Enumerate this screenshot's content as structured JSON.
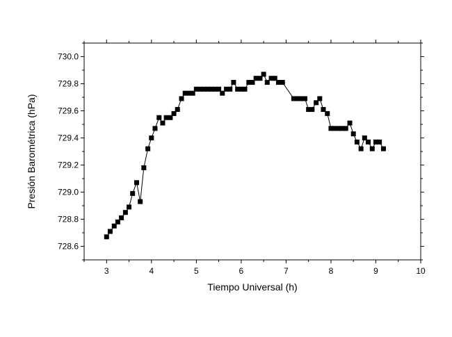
{
  "chart_data": {
    "type": "scatter",
    "title": "",
    "xlabel": "Tiempo Universal (h)",
    "ylabel": "Presión Barométrica (hPa)",
    "xlim": [
      2.5,
      10
    ],
    "ylim": [
      728.5,
      730.1
    ],
    "x_ticks": [
      3,
      4,
      5,
      6,
      7,
      8,
      9,
      10
    ],
    "x_tick_labels": [
      "3",
      "4",
      "5",
      "6",
      "7",
      "8",
      "9",
      "10"
    ],
    "y_ticks": [
      728.6,
      728.8,
      729.0,
      729.2,
      729.4,
      729.6,
      729.8,
      730.0
    ],
    "y_tick_labels": [
      "728.6",
      "728.8",
      "729.0",
      "729.2",
      "729.4",
      "729.6",
      "729.8",
      "730.0"
    ],
    "grid": false,
    "marker": "square",
    "line": true,
    "colors": {
      "series": "#000000"
    },
    "series": [
      {
        "x": [
          3.0,
          3.08,
          3.17,
          3.25,
          3.33,
          3.42,
          3.5,
          3.58,
          3.67,
          3.75,
          3.83,
          3.92,
          4.0,
          4.08,
          4.17,
          4.25,
          4.33,
          4.42,
          4.5,
          4.58,
          4.67,
          4.75,
          4.83,
          4.92,
          5.0,
          5.08,
          5.17,
          5.25,
          5.33,
          5.42,
          5.5,
          5.58,
          5.67,
          5.75,
          5.83,
          5.92,
          6.0,
          6.08,
          6.17,
          6.25,
          6.33,
          6.42,
          6.5,
          6.58,
          6.67,
          6.75,
          6.83,
          6.92,
          7.17,
          7.25,
          7.33,
          7.42,
          7.5,
          7.58,
          7.67,
          7.75,
          7.83,
          7.92,
          8.0,
          8.08,
          8.17,
          8.25,
          8.33,
          8.42,
          8.5,
          8.58,
          8.67,
          8.75,
          8.83,
          8.92,
          9.0,
          9.08,
          9.17
        ],
        "y": [
          728.67,
          728.71,
          728.75,
          728.78,
          728.81,
          728.85,
          728.89,
          728.99,
          729.07,
          728.93,
          729.18,
          729.32,
          729.4,
          729.47,
          729.55,
          729.51,
          729.55,
          729.55,
          729.58,
          729.61,
          729.69,
          729.73,
          729.73,
          729.73,
          729.76,
          729.76,
          729.76,
          729.76,
          729.76,
          729.76,
          729.76,
          729.73,
          729.76,
          729.76,
          729.81,
          729.76,
          729.76,
          729.76,
          729.81,
          729.81,
          729.84,
          729.84,
          729.87,
          729.81,
          729.84,
          729.84,
          729.81,
          729.81,
          729.69,
          729.69,
          729.69,
          729.69,
          729.61,
          729.61,
          729.66,
          729.69,
          729.61,
          729.58,
          729.47,
          729.47,
          729.47,
          729.47,
          729.47,
          729.51,
          729.43,
          729.37,
          729.32,
          729.4,
          729.37,
          729.32,
          729.37,
          729.37,
          729.32
        ]
      }
    ]
  }
}
